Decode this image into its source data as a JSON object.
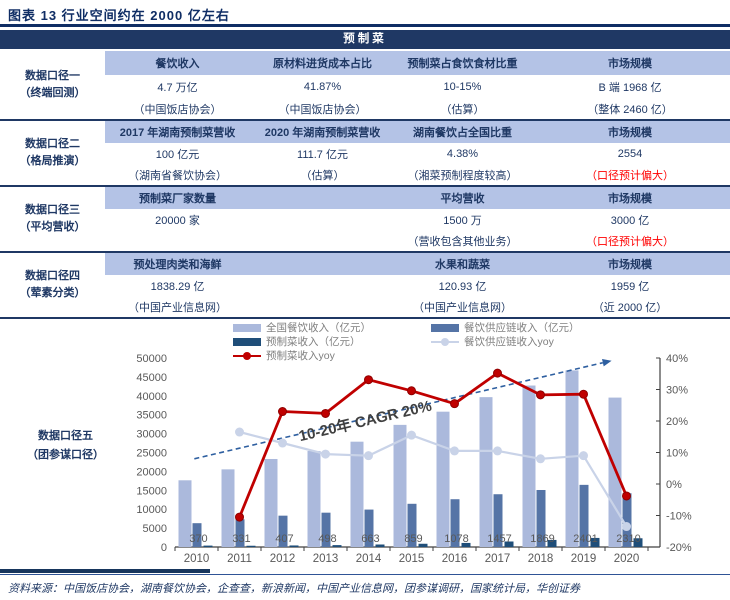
{
  "title": "图表 13  行业空间约在 2000 亿左右",
  "table": {
    "header": "预制菜",
    "groups": [
      {
        "label": "数据口径一",
        "label_sub": "（终端回测）",
        "cols": [
          {
            "h": "餐饮收入",
            "v": "4.7 万亿",
            "s": "（中国饭店协会）"
          },
          {
            "h": "原材料进货成本占比",
            "v": "41.87%",
            "s": "（中国饭店协会）"
          },
          {
            "h": "预制菜占食饮食材比重",
            "v": "10-15%",
            "s": "（估算）"
          },
          {
            "h": "市场规模",
            "v": "B 端 1968 亿",
            "s": "（整体 2460 亿）"
          }
        ]
      },
      {
        "label": "数据口径二",
        "label_sub": "（格局推演）",
        "cols": [
          {
            "h": "2017 年湖南预制菜营收",
            "v": "100 亿元",
            "s": "（湖南省餐饮协会）"
          },
          {
            "h": "2020 年湖南预制菜营收",
            "v": "111.7 亿元",
            "s": "（估算）"
          },
          {
            "h": "湖南餐饮占全国比重",
            "v": "4.38%",
            "s": "（湘菜预制程度较高）"
          },
          {
            "h": "市场规模",
            "v": "2554",
            "s": "（口径预计偏大）"
          }
        ]
      },
      {
        "label": "数据口径三",
        "label_sub": "（平均营收）",
        "cols": [
          {
            "h": "预制菜厂家数量",
            "v": "20000 家",
            "s": ""
          },
          {
            "h": "",
            "v": "",
            "s": ""
          },
          {
            "h": "平均营收",
            "v": "1500 万",
            "s": "（营收包含其他业务）"
          },
          {
            "h": "市场规模",
            "v": "3000 亿",
            "s": "（口径预计偏大）"
          }
        ]
      },
      {
        "label": "数据口径四",
        "label_sub": "（荤素分类）",
        "cols": [
          {
            "h": "预处理肉类和海鲜",
            "v": "1838.29 亿",
            "s": "（中国产业信息网）"
          },
          {
            "h": "",
            "v": "",
            "s": ""
          },
          {
            "h": "水果和蔬菜",
            "v": "120.93 亿",
            "s": "（中国产业信息网）"
          },
          {
            "h": "市场规模",
            "v": "1959 亿",
            "s": "（近 2000 亿）"
          }
        ]
      }
    ]
  },
  "chart_row_label": "数据口径五",
  "chart_row_label_sub": "（团参谋口径）",
  "chart_data": {
    "type": "bar",
    "categories": [
      "2010",
      "2011",
      "2012",
      "2013",
      "2014",
      "2015",
      "2016",
      "2017",
      "2018",
      "2019",
      "2020"
    ],
    "series": [
      {
        "name": "全国餐饮收入（亿元）",
        "kind": "bar",
        "axis": "left",
        "color": "#ABB9DC",
        "values": [
          17648,
          20543,
          23283,
          25392,
          27860,
          32310,
          35799,
          39644,
          42716,
          46721,
          39527
        ]
      },
      {
        "name": "餐饮供应链收入（亿元）",
        "kind": "bar",
        "axis": "left",
        "color": "#5574A6",
        "values": [
          6300,
          7340,
          8290,
          9080,
          9900,
          11430,
          12640,
          13960,
          15080,
          16440,
          14220
        ]
      },
      {
        "name": "预制菜收入（亿元）",
        "kind": "bar",
        "axis": "left",
        "color": "#1F4E79",
        "labeled": true,
        "values": [
          370,
          331,
          407,
          498,
          663,
          859,
          1078,
          1457,
          1869,
          2401,
          2310
        ]
      },
      {
        "name": "预制菜收入yoy",
        "kind": "line",
        "axis": "right",
        "color": "#C00000",
        "values": [
          null,
          -10.5,
          23.0,
          22.4,
          33.1,
          29.6,
          25.5,
          35.2,
          28.3,
          28.5,
          -3.8
        ]
      },
      {
        "name": "餐饮供应链收入yoy",
        "kind": "line",
        "axis": "right",
        "color": "#C9D3E8",
        "values": [
          null,
          16.5,
          13.0,
          9.5,
          9.0,
          15.5,
          10.5,
          10.5,
          8.0,
          9.0,
          -13.5
        ]
      }
    ],
    "left_axis": {
      "min": 0,
      "max": 50000,
      "step": 5000
    },
    "right_axis": {
      "min": -20,
      "max": 40,
      "step": 10,
      "suffix": "%"
    },
    "annotation": {
      "text": "10-20年 CAGR 20%",
      "color": "#404040"
    },
    "trend_arrow_color": "#2E5FA0",
    "grid": false,
    "legend_position": "top"
  },
  "source": "资料来源：中国饭店协会，湖南餐饮协会，企查查，新浪新闻，中国产业信息网，团参谋调研，国家统计局，华创证券"
}
